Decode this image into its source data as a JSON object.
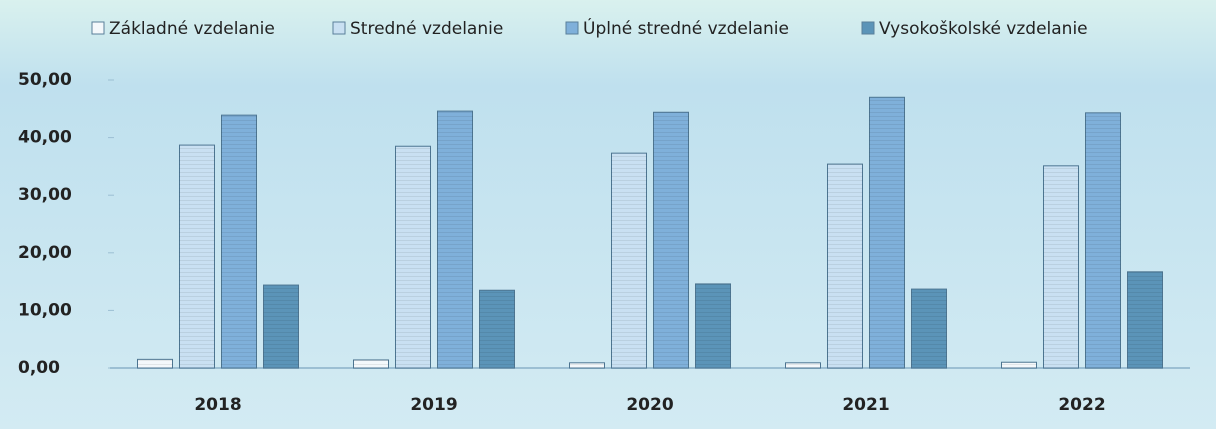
{
  "chart_data": {
    "type": "bar",
    "categories": [
      "2018",
      "2019",
      "2020",
      "2021",
      "2022"
    ],
    "series": [
      {
        "name": "Základné vzdelanie",
        "color": "#f4f8fb",
        "values": [
          1.5,
          1.4,
          0.9,
          0.9,
          1.0
        ]
      },
      {
        "name": "Stredné vzdelanie",
        "color": "#c9e0f2",
        "values": [
          38.7,
          38.5,
          37.3,
          35.4,
          35.1
        ]
      },
      {
        "name": "Úplné stredné vzdelanie",
        "color": "#7fb0da",
        "values": [
          43.9,
          44.6,
          44.4,
          47.0,
          44.3
        ]
      },
      {
        "name": "Vysokoškolské vzdelanie",
        "color": "#5b94b8",
        "values": [
          14.4,
          13.5,
          14.6,
          13.7,
          16.7
        ]
      }
    ],
    "ylim": [
      0,
      50
    ],
    "yticks": [
      {
        "value": 0,
        "label": "0,00"
      },
      {
        "value": 10,
        "label": "10,00"
      },
      {
        "value": 20,
        "label": "20,00"
      },
      {
        "value": 30,
        "label": "30,00"
      },
      {
        "value": 40,
        "label": "40,00"
      },
      {
        "value": 50,
        "label": "50,00"
      }
    ],
    "legend": "top"
  }
}
